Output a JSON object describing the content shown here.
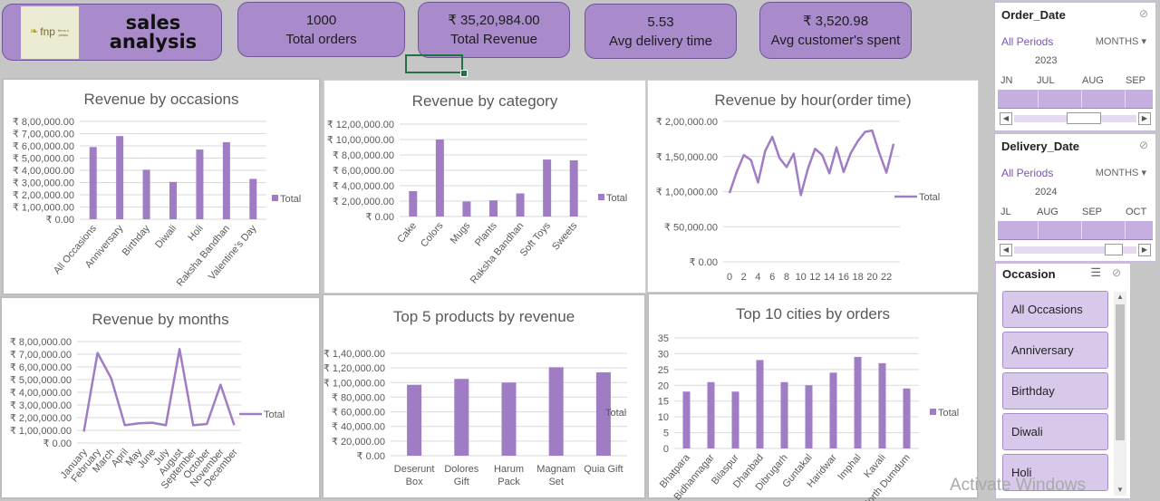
{
  "header": {
    "title": "sales analysis",
    "logo_text": "fnp",
    "logo_subtext": "ferns n petals",
    "kpis": [
      {
        "value": "1000",
        "label": "Total orders"
      },
      {
        "value": "₹ 35,20,984.00",
        "label": "Total Revenue"
      },
      {
        "value": "5.53",
        "label": "Avg delivery time"
      },
      {
        "value": "₹ 3,520.98",
        "label": "Avg customer's spent"
      }
    ]
  },
  "colors": {
    "accent": "#a98bcb",
    "series": "#a07cc5",
    "canvas": "#c6c6c6"
  },
  "chart_data": [
    {
      "type": "bar",
      "title": "Revenue by occasions",
      "categories": [
        "All Occasions",
        "Anniversary",
        "Birthday",
        "Diwali",
        "Holi",
        "Raksha Bandhan",
        "Valentine's Day"
      ],
      "series": [
        {
          "name": "Total",
          "values": [
            590000,
            680000,
            405000,
            305000,
            570000,
            630000,
            330000
          ]
        }
      ],
      "yticks": [
        "₹ 0.00",
        "₹ 1,00,000.00",
        "₹ 2,00,000.00",
        "₹ 3,00,000.00",
        "₹ 4,00,000.00",
        "₹ 5,00,000.00",
        "₹ 6,00,000.00",
        "₹ 7,00,000.00",
        "₹ 8,00,000.00"
      ],
      "ylim": [
        0,
        800000
      ],
      "legend": "right"
    },
    {
      "type": "bar",
      "title": "Revenue by category",
      "categories": [
        "Cake",
        "Colors",
        "Mugs",
        "Plants",
        "Raksha Bandhan",
        "Soft Toys",
        "Sweets"
      ],
      "series": [
        {
          "name": "Total",
          "values": [
            330000,
            1000000,
            195000,
            210000,
            300000,
            740000,
            730000
          ]
        }
      ],
      "yticks": [
        "₹ 0.00",
        "₹ 2,00,000.00",
        "₹ 4,00,000.00",
        "₹ 6,00,000.00",
        "₹ 8,00,000.00",
        "₹ 10,00,000.00",
        "₹ 12,00,000.00"
      ],
      "ylim": [
        0,
        1200000
      ],
      "legend": "right"
    },
    {
      "type": "line",
      "title": "Revenue by hour(order time)",
      "x": [
        0,
        1,
        2,
        3,
        4,
        5,
        6,
        7,
        8,
        9,
        10,
        11,
        12,
        13,
        14,
        15,
        16,
        17,
        18,
        19,
        20,
        21,
        22,
        23
      ],
      "xticks": [
        "0",
        "2",
        "4",
        "6",
        "8",
        "10",
        "12",
        "14",
        "16",
        "18",
        "20",
        "22"
      ],
      "series": [
        {
          "name": "Total",
          "values": [
            98000,
            128000,
            152000,
            145000,
            113000,
            158000,
            178000,
            148000,
            135000,
            154000,
            95000,
            133000,
            161000,
            152000,
            126000,
            163000,
            128000,
            155000,
            172000,
            185000,
            187000,
            155000,
            127000,
            168000
          ]
        }
      ],
      "yticks": [
        "₹ 0.00",
        "₹ 50,000.00",
        "₹ 1,00,000.00",
        "₹ 1,50,000.00",
        "₹ 2,00,000.00"
      ],
      "ylim": [
        0,
        200000
      ],
      "legend": "right"
    },
    {
      "type": "line",
      "title": "Revenue by months",
      "categories": [
        "January",
        "February",
        "March",
        "April",
        "May",
        "June",
        "July",
        "August",
        "September",
        "October",
        "November",
        "December"
      ],
      "series": [
        {
          "name": "Total",
          "values": [
            90000,
            710000,
            510000,
            140000,
            155000,
            160000,
            140000,
            740000,
            140000,
            150000,
            460000,
            140000
          ]
        }
      ],
      "yticks": [
        "₹ 0.00",
        "₹ 1,00,000.00",
        "₹ 2,00,000.00",
        "₹ 3,00,000.00",
        "₹ 4,00,000.00",
        "₹ 5,00,000.00",
        "₹ 6,00,000.00",
        "₹ 7,00,000.00",
        "₹ 8,00,000.00"
      ],
      "ylim": [
        0,
        800000
      ],
      "legend": "right"
    },
    {
      "type": "bar",
      "title": "Top 5 products by revenue",
      "categories": [
        [
          "Deserunt",
          "Box"
        ],
        [
          "Dolores",
          "Gift"
        ],
        [
          "Harum",
          "Pack"
        ],
        [
          "Magnam",
          "Set"
        ],
        [
          "Quia Gift"
        ]
      ],
      "series": [
        {
          "name": "Total",
          "values": [
            97000,
            105000,
            100000,
            121000,
            114000
          ]
        }
      ],
      "yticks": [
        "₹ 0.00",
        "₹ 20,000.00",
        "₹ 40,000.00",
        "₹ 60,000.00",
        "₹ 80,000.00",
        "₹ 1,00,000.00",
        "₹ 1,20,000.00",
        "₹ 1,40,000.00"
      ],
      "ylim": [
        0,
        140000
      ],
      "legend": "right"
    },
    {
      "type": "bar",
      "title": "Top 10 cities by orders",
      "categories": [
        "Bhatpara",
        "Bidhannagar",
        "Bilaspur",
        "Dhanbad",
        "Dibrugarh",
        "Guntakal",
        "Haridwar",
        "Imphal",
        "Kavali",
        "North Dumdum"
      ],
      "series": [
        {
          "name": "Total",
          "values": [
            18,
            21,
            18,
            28,
            21,
            20,
            24,
            29,
            27,
            19
          ]
        }
      ],
      "yticks": [
        "0",
        "5",
        "10",
        "15",
        "20",
        "25",
        "30",
        "35"
      ],
      "ylim": [
        0,
        35
      ],
      "legend": "right"
    }
  ],
  "slicers": {
    "order_date": {
      "title": "Order_Date",
      "period": "All Periods",
      "unit": "MONTHS",
      "year": "2023",
      "months": [
        "JN",
        "JUL",
        "AUG",
        "SEP"
      ]
    },
    "delivery_date": {
      "title": "Delivery_Date",
      "period": "All Periods",
      "unit": "MONTHS",
      "year": "2024",
      "months": [
        "JL",
        "AUG",
        "SEP",
        "OCT"
      ]
    },
    "occasion": {
      "title": "Occasion",
      "items": [
        "All Occasions",
        "Anniversary",
        "Birthday",
        "Diwali",
        "Holi"
      ]
    }
  },
  "watermark": "Activate Windows"
}
